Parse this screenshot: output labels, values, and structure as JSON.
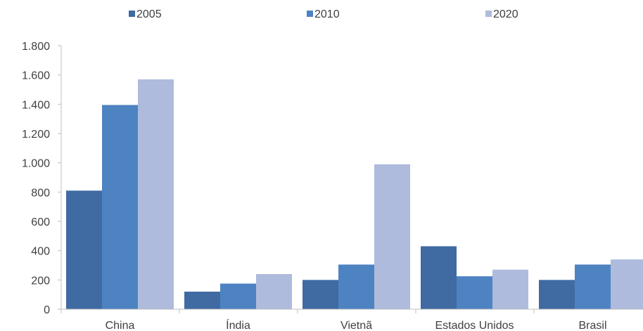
{
  "chart_data": {
    "type": "bar",
    "categories": [
      "China",
      "Índia",
      "Vietnã",
      "Estados Unidos",
      "Brasil"
    ],
    "series": [
      {
        "name": "2005",
        "color": "#3f6aa2",
        "values": [
          810,
          120,
          200,
          430,
          200
        ]
      },
      {
        "name": "2010",
        "color": "#4e83c2",
        "values": [
          1395,
          175,
          305,
          225,
          305
        ]
      },
      {
        "name": "2020",
        "color": "#aebbdc",
        "values": [
          1570,
          240,
          990,
          270,
          340
        ]
      }
    ],
    "ylim": [
      0,
      1800
    ],
    "yticks": [
      0,
      200,
      400,
      600,
      800,
      1000,
      1200,
      1400,
      1600,
      1800
    ],
    "ytick_labels": [
      "0",
      "200",
      "400",
      "600",
      "800",
      "1.000",
      "1.200",
      "1.400",
      "1.600",
      "1.800"
    ],
    "legend_position": "top",
    "grid": false,
    "title": "",
    "xlabel": "",
    "ylabel": ""
  }
}
